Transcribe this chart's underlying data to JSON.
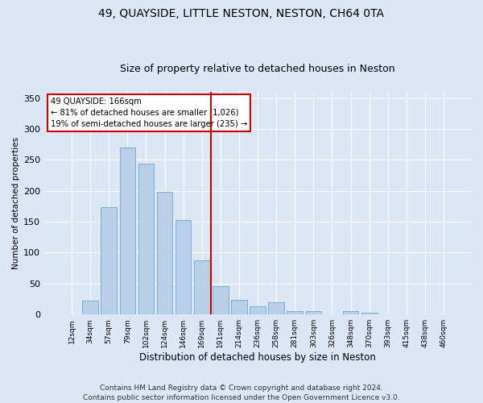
{
  "title": "49, QUAYSIDE, LITTLE NESTON, NESTON, CH64 0TA",
  "subtitle": "Size of property relative to detached houses in Neston",
  "xlabel": "Distribution of detached houses by size in Neston",
  "ylabel": "Number of detached properties",
  "footer_line1": "Contains HM Land Registry data © Crown copyright and database right 2024.",
  "footer_line2": "Contains public sector information licensed under the Open Government Licence v3.0.",
  "annotation_title": "49 QUAYSIDE: 166sqm",
  "annotation_line2": "← 81% of detached houses are smaller (1,026)",
  "annotation_line3": "19% of semi-detached houses are larger (235) →",
  "bar_labels": [
    "12sqm",
    "34sqm",
    "57sqm",
    "79sqm",
    "102sqm",
    "124sqm",
    "146sqm",
    "169sqm",
    "191sqm",
    "214sqm",
    "236sqm",
    "258sqm",
    "281sqm",
    "303sqm",
    "326sqm",
    "348sqm",
    "370sqm",
    "393sqm",
    "415sqm",
    "438sqm",
    "460sqm"
  ],
  "bar_values": [
    0,
    22,
    173,
    270,
    244,
    198,
    153,
    88,
    46,
    24,
    13,
    20,
    5,
    6,
    0,
    5,
    3,
    0,
    0,
    0,
    0
  ],
  "bar_color": "#b8cfe8",
  "bar_edge_color": "#6aaad4",
  "vline_x": 7.5,
  "vline_color": "#cc0000",
  "annotation_box_facecolor": "#ffffff",
  "annotation_box_edge": "#cc0000",
  "ylim": [
    0,
    360
  ],
  "yticks": [
    0,
    50,
    100,
    150,
    200,
    250,
    300,
    350
  ],
  "bg_color": "#dce6f5",
  "plot_bg_color": "#dce6f5",
  "grid_color": "#ffffff",
  "title_fontsize": 10,
  "subtitle_fontsize": 9,
  "footer_fontsize": 6.5
}
